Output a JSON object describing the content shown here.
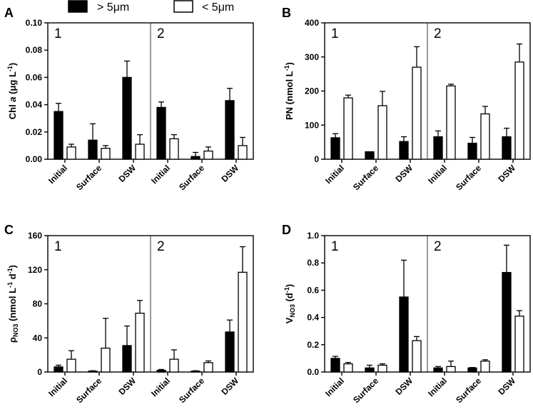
{
  "legend": {
    "large_label": "> 5μm",
    "small_label": "< 5μm",
    "large_color": "#000000",
    "small_color": "#ffffff"
  },
  "chart_data": [
    {
      "type": "bar",
      "panel": "A",
      "ylabel": {
        "main": "Chl ",
        "italic": "a",
        "unit": " (μg L",
        "sup": "-1",
        "close": ")"
      },
      "ylim": [
        0,
        0.1
      ],
      "yticks": [
        "0.00",
        "0.02",
        "0.04",
        "0.06",
        "0.08",
        "0.10"
      ],
      "sections": [
        "1",
        "2"
      ],
      "categories": [
        "Initial",
        "Surface",
        "DSW",
        "Initial",
        "Surface",
        "DSW"
      ],
      "series": [
        {
          "name": "> 5μm",
          "values": [
            0.035,
            0.014,
            0.06,
            0.038,
            0.002,
            0.043
          ],
          "errors": [
            0.006,
            0.012,
            0.012,
            0.004,
            0.003,
            0.009
          ]
        },
        {
          "name": "< 5μm",
          "values": [
            0.009,
            0.008,
            0.011,
            0.015,
            0.006,
            0.01
          ],
          "errors": [
            0.002,
            0.002,
            0.007,
            0.003,
            0.003,
            0.006
          ]
        }
      ]
    },
    {
      "type": "bar",
      "panel": "B",
      "ylabel": {
        "main": "PN (nmol L",
        "sup": "-1",
        "close": ")"
      },
      "ylim": [
        0,
        400
      ],
      "yticks": [
        "0",
        "100",
        "200",
        "300",
        "400"
      ],
      "sections": [
        "1",
        "2"
      ],
      "categories": [
        "Initial",
        "Surface",
        "DSW",
        "Initial",
        "Surface",
        "DSW"
      ],
      "series": [
        {
          "name": "> 5μm",
          "values": [
            63,
            22,
            52,
            66,
            47,
            66
          ],
          "errors": [
            12,
            0,
            14,
            17,
            17,
            25
          ]
        },
        {
          "name": "< 5μm",
          "values": [
            180,
            157,
            270,
            215,
            133,
            285
          ],
          "errors": [
            8,
            42,
            60,
            5,
            22,
            53
          ]
        }
      ]
    },
    {
      "type": "bar",
      "panel": "C",
      "ylabel": {
        "rho": "ρ",
        "sub": "NO3",
        "unit": " (nmol L",
        "sup1": "-1",
        "mid": " d",
        "sup2": "-1",
        "close": ")"
      },
      "ylim": [
        0,
        160
      ],
      "yticks": [
        "0",
        "40",
        "80",
        "120",
        "160"
      ],
      "sections": [
        "1",
        "2"
      ],
      "categories": [
        "Initial",
        "Surface",
        "DSW",
        "Initial",
        "Surface",
        "DSW"
      ],
      "series": [
        {
          "name": "> 5μm",
          "values": [
            6,
            1,
            31,
            2,
            1,
            47
          ],
          "errors": [
            2,
            0.5,
            23,
            1,
            0.5,
            14
          ]
        },
        {
          "name": "< 5μm",
          "values": [
            15,
            28,
            69,
            15,
            11,
            117
          ],
          "errors": [
            10,
            35,
            15,
            11,
            2,
            30
          ]
        }
      ]
    },
    {
      "type": "bar",
      "panel": "D",
      "ylabel": {
        "main": "V",
        "sub": "NO3",
        "unit": " (d",
        "sup": "-1",
        "close": ")"
      },
      "ylim": [
        0,
        1.0
      ],
      "yticks": [
        "0.0",
        "0.2",
        "0.4",
        "0.6",
        "0.8",
        "1.0"
      ],
      "sections": [
        "1",
        "2"
      ],
      "categories": [
        "Initial",
        "Surface",
        "DSW",
        "Initial",
        "Surface",
        "DSW"
      ],
      "series": [
        {
          "name": "> 5μm",
          "values": [
            0.1,
            0.03,
            0.55,
            0.03,
            0.03,
            0.73
          ],
          "errors": [
            0.015,
            0.02,
            0.27,
            0.01,
            0.003,
            0.2
          ]
        },
        {
          "name": "< 5μm",
          "values": [
            0.06,
            0.05,
            0.23,
            0.04,
            0.08,
            0.41
          ],
          "errors": [
            0.01,
            0.01,
            0.03,
            0.04,
            0.01,
            0.04
          ]
        }
      ]
    }
  ]
}
